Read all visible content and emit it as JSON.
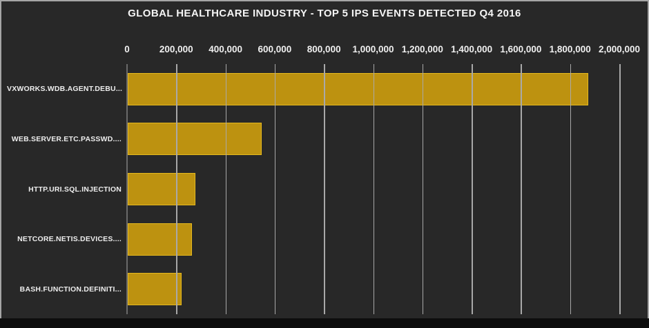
{
  "chart": {
    "title": "GLOBAL HEALTHCARE INDUSTRY - TOP 5 IPS EVENTS DETECTED Q4 2016"
  },
  "chart_data": {
    "type": "bar",
    "orientation": "horizontal",
    "title": "GLOBAL HEALTHCARE INDUSTRY - TOP 5 IPS EVENTS DETECTED Q4 2016",
    "categories": [
      "VXWORKS.WDB.AGENT.DEBU...",
      "WEB.SERVER.ETC.PASSWD....",
      "HTTP.URI.SQL.INJECTION",
      "NETCORE.NETIS.DEVICES....",
      "BASH.FUNCTION.DEFINITI..."
    ],
    "values": [
      1870000,
      545000,
      275000,
      260000,
      220000
    ],
    "xlabel": "",
    "ylabel": "",
    "xlim": [
      0,
      2000000
    ],
    "x_tick_step": 200000,
    "x_tick_labels": [
      "0",
      "200,000",
      "400,000",
      "600,000",
      "800,000",
      "1,000,000",
      "1,200,000",
      "1,400,000",
      "1,600,000",
      "1,800,000",
      "2,000,000"
    ],
    "grid": true,
    "gridlines_over_bars": true,
    "legend": "none"
  },
  "colors": {
    "slide_background": "#282828",
    "frame_border": "#a6a6a6",
    "bottom_strip": "#0d0d0d",
    "bar_fill": "#bd9210",
    "bar_border": "#e6b91e",
    "gridline": "#a9a9a9",
    "axis_line": "#6a6a6a",
    "text": "#f0f0f0"
  }
}
